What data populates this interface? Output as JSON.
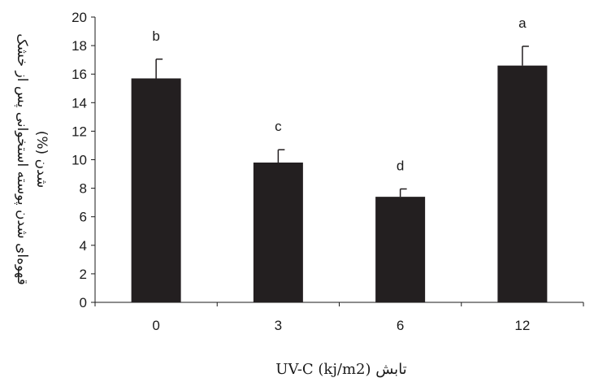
{
  "chart_data": {
    "type": "bar",
    "categories": [
      "0",
      "3",
      "6",
      "12"
    ],
    "values": [
      15.7,
      9.8,
      7.4,
      16.6
    ],
    "error_bars": [
      1.35,
      0.9,
      0.55,
      1.35
    ],
    "significance_letters": [
      "b",
      "c",
      "d",
      "a"
    ],
    "xlabel": "تابش UV-C (kj/m2)",
    "ylabel_lines": [
      "قهوه‌ای شدن پوسته استخوانی پس از خشک",
      "شدن (%)"
    ],
    "ylim": [
      0,
      20
    ],
    "yticks": [
      0,
      2,
      4,
      6,
      8,
      10,
      12,
      14,
      16,
      18,
      20
    ],
    "grid": false,
    "bar_color": "#231f20"
  }
}
